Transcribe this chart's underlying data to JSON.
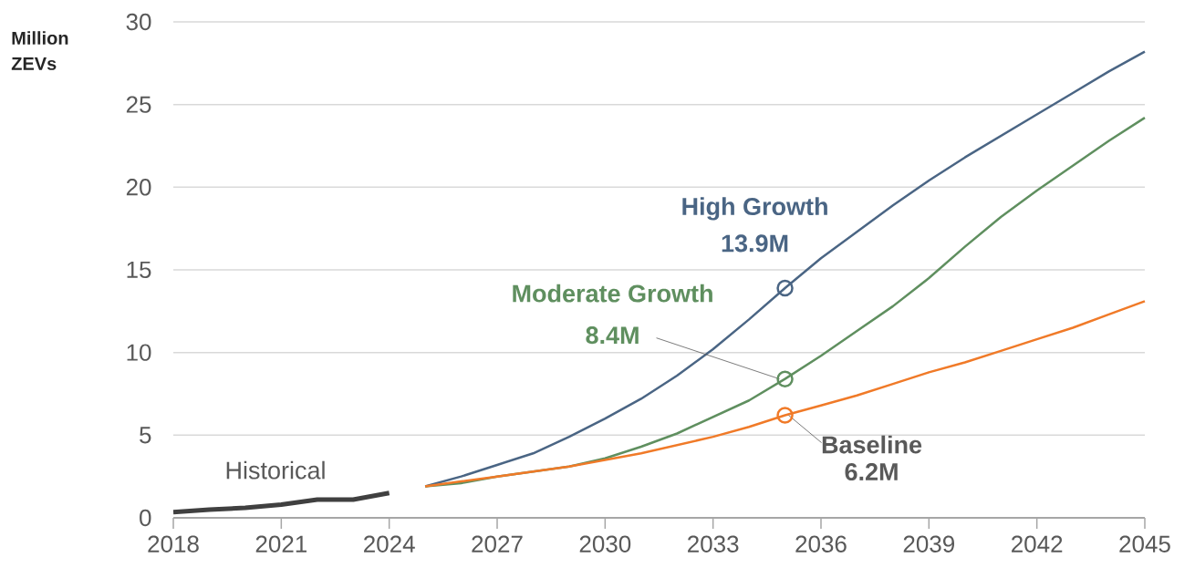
{
  "chart_data": {
    "type": "line",
    "ylabel": "Million ZEVs",
    "xlim": [
      2018,
      2045
    ],
    "xticks": [
      2018,
      2021,
      2024,
      2027,
      2030,
      2033,
      2036,
      2039,
      2042,
      2045
    ],
    "ylim": [
      0,
      30
    ],
    "yticks": [
      0,
      5,
      10,
      15,
      20,
      25,
      30
    ],
    "grid": "y",
    "marker": "none",
    "line_style": "solid",
    "series": [
      {
        "name": "Historical",
        "color": "#404040",
        "x": [
          2018,
          2019,
          2020,
          2021,
          2022,
          2023,
          2024
        ],
        "values": [
          0.35,
          0.5,
          0.6,
          0.8,
          1.1,
          1.1,
          1.5
        ]
      },
      {
        "name": "High Growth",
        "color": "#4a6584",
        "x": [
          2025,
          2026,
          2027,
          2028,
          2029,
          2030,
          2031,
          2032,
          2033,
          2034,
          2035,
          2036,
          2037,
          2038,
          2039,
          2040,
          2041,
          2042,
          2043,
          2044,
          2045
        ],
        "values": [
          1.9,
          2.5,
          3.2,
          3.9,
          4.9,
          6.0,
          7.2,
          8.6,
          10.2,
          12.0,
          13.9,
          15.7,
          17.3,
          18.9,
          20.4,
          21.8,
          23.1,
          24.4,
          25.7,
          27.0,
          28.2
        ],
        "value_labels": [
          null,
          null,
          null,
          null,
          null,
          null,
          null,
          null,
          null,
          null,
          "13.9M",
          null,
          null,
          null,
          null,
          null,
          null,
          null,
          null,
          null,
          null
        ]
      },
      {
        "name": "Moderate Growth",
        "color": "#5f8f5f",
        "x": [
          2025,
          2026,
          2027,
          2028,
          2029,
          2030,
          2031,
          2032,
          2033,
          2034,
          2035,
          2036,
          2037,
          2038,
          2039,
          2040,
          2041,
          2042,
          2043,
          2044,
          2045
        ],
        "values": [
          1.9,
          2.1,
          2.5,
          2.8,
          3.1,
          3.6,
          4.3,
          5.1,
          6.1,
          7.1,
          8.4,
          9.8,
          11.3,
          12.8,
          14.5,
          16.4,
          18.2,
          19.8,
          21.3,
          22.8,
          24.2
        ],
        "value_labels": [
          null,
          null,
          null,
          null,
          null,
          null,
          null,
          null,
          null,
          null,
          "8.4M",
          null,
          null,
          null,
          null,
          null,
          null,
          null,
          null,
          null,
          null
        ]
      },
      {
        "name": "Baseline",
        "color": "#f07a28",
        "x": [
          2025,
          2026,
          2027,
          2028,
          2029,
          2030,
          2031,
          2032,
          2033,
          2034,
          2035,
          2036,
          2037,
          2038,
          2039,
          2040,
          2041,
          2042,
          2043,
          2044,
          2045
        ],
        "values": [
          1.9,
          2.2,
          2.5,
          2.8,
          3.1,
          3.5,
          3.9,
          4.4,
          4.9,
          5.5,
          6.2,
          6.8,
          7.4,
          8.1,
          8.8,
          9.4,
          10.1,
          10.8,
          11.5,
          12.3,
          13.1
        ],
        "value_labels": [
          null,
          null,
          null,
          null,
          null,
          null,
          null,
          null,
          null,
          null,
          "6.2M",
          null,
          null,
          null,
          null,
          null,
          null,
          null,
          null,
          null,
          null
        ]
      }
    ]
  }
}
